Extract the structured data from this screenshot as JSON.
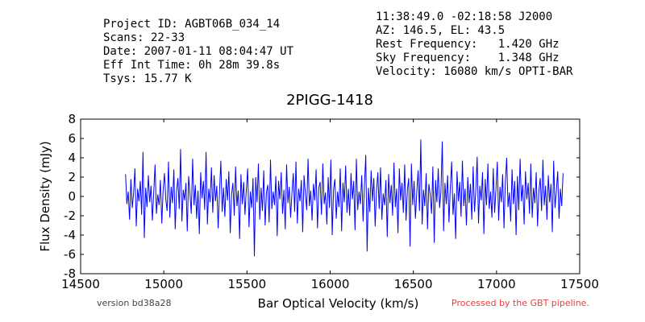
{
  "header": {
    "left": [
      "Project ID: AGBT06B_034_14",
      "Scans: 22-33",
      "Date: 2007-01-11 08:04:47 UT",
      "Eff Int Time: 0h 28m 39.8s",
      "Tsys: 15.77 K"
    ],
    "right": [
      "11:38:49.0 -02:18:58 J2000",
      "AZ: 146.5, EL: 43.5",
      "Rest Frequency:   1.420 GHz",
      "Sky Frequency:    1.348 GHz",
      "Velocity: 16080 km/s OPTI-BAR"
    ]
  },
  "footer": {
    "version": "version bd38a28",
    "pipeline": "Processed by the GBT pipeline."
  },
  "colors": {
    "series": "#0000ff",
    "pipeline_text": "#e84040"
  },
  "chart_data": {
    "type": "line",
    "title": "2PIGG-1418",
    "xlabel": "Bar Optical Velocity (km/s)",
    "ylabel": "Flux Density (mJy)",
    "xlim": [
      14500,
      17500
    ],
    "ylim": [
      -8,
      8
    ],
    "xticks": [
      14500,
      15000,
      15500,
      16000,
      16500,
      17000,
      17500
    ],
    "yticks": [
      -8,
      -6,
      -4,
      -2,
      0,
      2,
      4,
      6,
      8
    ],
    "grid": false,
    "series": [
      {
        "x_range": [
          14770,
          17400
        ],
        "values": [
          2.3,
          -0.8,
          0.5,
          -2.4,
          1.8,
          -1.2,
          0.3,
          2.9,
          -3.1,
          0.8,
          -0.5,
          1.6,
          -1.9,
          4.6,
          -4.3,
          0.9,
          -1.1,
          2.2,
          -0.6,
          1.1,
          -2.5,
          0.4,
          3.3,
          -1.8,
          0.2,
          -0.9,
          1.7,
          -2.8,
          0.6,
          2.4,
          -0.3,
          -1.5,
          3.6,
          -2.2,
          1.0,
          -0.7,
          2.8,
          -3.4,
          0.5,
          1.9,
          -1.3,
          4.9,
          -2.6,
          0.7,
          -0.4,
          1.4,
          -3.6,
          2.1,
          0.3,
          -1.8,
          3.9,
          -0.9,
          1.2,
          -2.3,
          0.6,
          -3.9,
          2.5,
          -0.2,
          1.6,
          -1.4,
          4.6,
          -2.9,
          0.8,
          -0.6,
          3.0,
          -1.7,
          2.2,
          -0.5,
          1.1,
          -3.3,
          0.4,
          3.7,
          -1.6,
          0.9,
          -2.1,
          1.8,
          -0.4,
          2.6,
          -3.8,
          0.2,
          1.4,
          -2.0,
          3.1,
          -1.0,
          0.6,
          -4.4,
          2.3,
          -0.8,
          1.5,
          -1.9,
          0.7,
          2.9,
          -3.2,
          0.5,
          -1.2,
          1.9,
          -6.2,
          2.0,
          -0.6,
          3.4,
          -2.4,
          0.9,
          -1.5,
          2.7,
          -3.0,
          0.4,
          1.2,
          -2.7,
          3.8,
          -1.3,
          0.5,
          -0.9,
          2.1,
          -4.1,
          1.6,
          -0.3,
          2.5,
          -1.8,
          0.7,
          -3.4,
          3.3,
          -0.7,
          1.0,
          -2.2,
          0.4,
          2.4,
          -1.6,
          3.6,
          -2.8,
          0.8,
          -0.5,
          1.7,
          -3.7,
          2.2,
          0.3,
          -1.4,
          3.9,
          -1.0,
          0.6,
          -2.5,
          1.3,
          -0.4,
          2.8,
          -3.3,
          0.9,
          1.5,
          -1.9,
          3.4,
          -0.8,
          0.4,
          -2.9,
          2.0,
          -1.2,
          3.8,
          -4.0,
          0.7,
          1.8,
          -2.3,
          0.5,
          -1.1,
          2.9,
          -3.6,
          1.4,
          -0.6,
          3.2,
          -1.7,
          0.8,
          -2.0,
          2.4,
          -0.3,
          1.6,
          -3.5,
          3.9,
          -1.4,
          0.5,
          -0.8,
          2.2,
          -2.6,
          1.1,
          4.3,
          -5.7,
          0.9,
          -1.6,
          2.7,
          -0.5,
          1.9,
          -3.1,
          0.6,
          2.5,
          -1.3,
          3.0,
          -2.4,
          0.3,
          -0.9,
          1.7,
          -4.2,
          2.3,
          -0.7,
          1.2,
          -2.0,
          3.5,
          -1.1,
          0.8,
          -3.8,
          2.9,
          -0.4,
          1.4,
          -1.7,
          3.3,
          -2.5,
          0.6,
          1.9,
          -5.2,
          3.4,
          -0.9,
          1.6,
          -2.3,
          0.4,
          2.7,
          -1.5,
          5.9,
          -2.9,
          0.7,
          -1.0,
          2.4,
          -3.4,
          1.3,
          0.2,
          -1.8,
          3.1,
          -4.8,
          1.7,
          -0.6,
          2.9,
          -1.2,
          0.5,
          5.7,
          -3.6,
          1.4,
          -0.8,
          2.2,
          -2.7,
          0.9,
          3.6,
          -1.9,
          0.3,
          -4.4,
          2.6,
          -0.5,
          1.5,
          -2.1,
          3.7,
          -1.0,
          0.8,
          -3.0,
          2.0,
          -0.7,
          1.3,
          -2.4,
          3.1,
          -1.6,
          0.6,
          4.1,
          -2.8,
          1.1,
          -0.4,
          2.5,
          -3.9,
          1.8,
          -0.9,
          3.4,
          -1.3,
          0.5,
          -2.2,
          2.9,
          -1.7,
          0.7,
          3.6,
          -2.5,
          1.0,
          -0.6,
          2.3,
          -3.3,
          1.5,
          4.0,
          -1.1,
          0.4,
          -2.6,
          2.8,
          -0.8,
          1.6,
          -4.0,
          2.1,
          -1.4,
          3.9,
          -0.5,
          1.2,
          -2.9,
          2.6,
          -0.3,
          1.4,
          -1.8,
          3.4,
          -2.2,
          0.9,
          -0.7,
          2.5,
          -3.1,
          0.6,
          1.9,
          -1.5,
          3.8,
          -0.9,
          1.1,
          -2.4,
          2.2,
          -0.6,
          1.3,
          -3.7,
          3.7,
          -1.2,
          0.5,
          2.6,
          -2.3,
          0.8,
          -1.0,
          2.4
        ]
      }
    ]
  }
}
